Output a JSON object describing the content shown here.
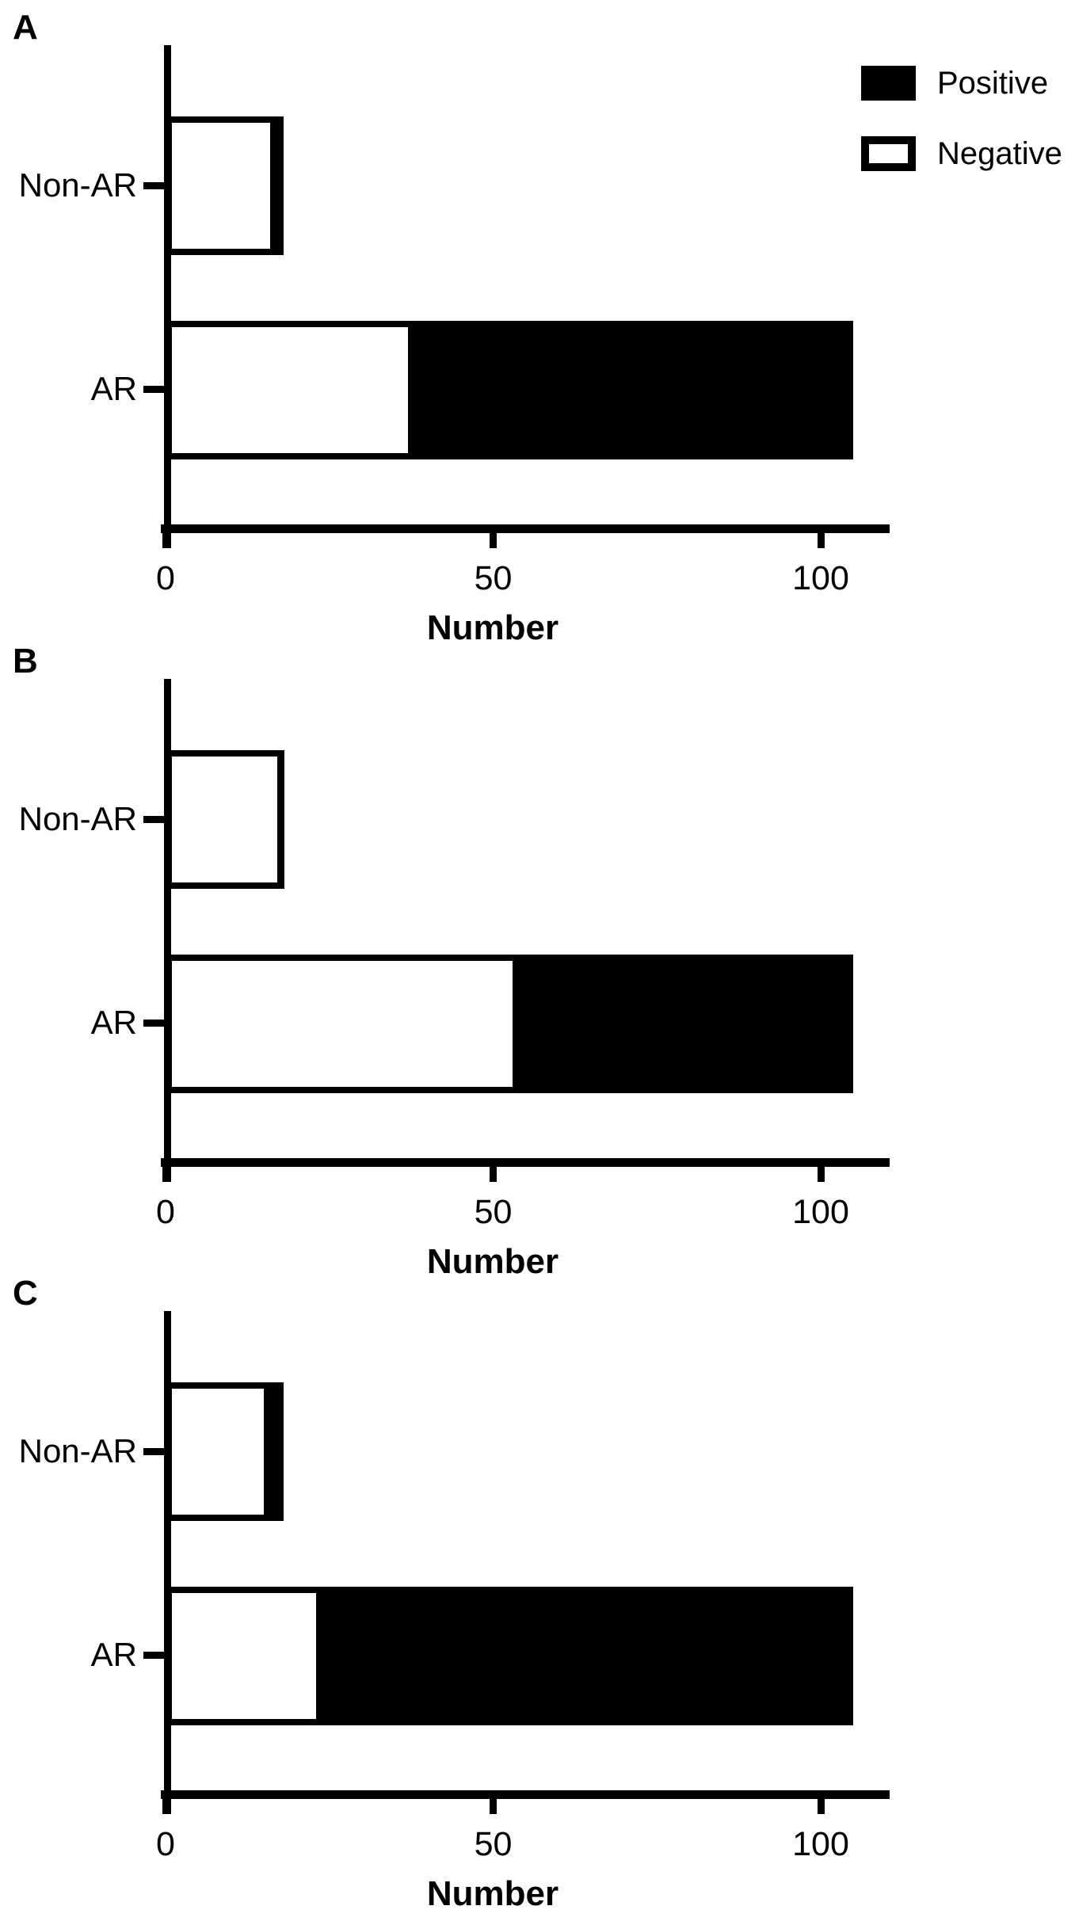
{
  "figure_title": "",
  "colors": {
    "foreground": "#000000",
    "background": "#ffffff",
    "positive_fill": "#000000",
    "negative_fill": "#ffffff"
  },
  "legend": {
    "entries": [
      {
        "label": "Positive",
        "fill": "#000000"
      },
      {
        "label": "Negative",
        "fill": "#ffffff"
      }
    ],
    "position": "top-right-of-panel-A"
  },
  "chart_data": [
    {
      "type": "bar",
      "orientation": "horizontal",
      "stacked": true,
      "panel": "A",
      "categories": [
        "Non-AR",
        "AR"
      ],
      "series": [
        {
          "name": "Negative",
          "values": [
            15,
            36
          ]
        },
        {
          "name": "Positive",
          "values": [
            3,
            69
          ]
        }
      ],
      "totals": [
        18,
        105
      ],
      "xlabel": "Number",
      "xticks": [
        0,
        50,
        100
      ],
      "xlim": [
        0,
        110.5
      ],
      "grid": false,
      "has_legend": true
    },
    {
      "type": "bar",
      "orientation": "horizontal",
      "stacked": true,
      "panel": "B",
      "categories": [
        "Non-AR",
        "AR"
      ],
      "series": [
        {
          "name": "Negative",
          "values": [
            17,
            52
          ]
        },
        {
          "name": "Positive",
          "values": [
            1,
            53
          ]
        }
      ],
      "totals": [
        18,
        105
      ],
      "xlabel": "Number",
      "xticks": [
        0,
        50,
        100
      ],
      "xlim": [
        0,
        110.5
      ],
      "grid": false,
      "has_legend": false
    },
    {
      "type": "bar",
      "orientation": "horizontal",
      "stacked": true,
      "panel": "C",
      "categories": [
        "Non-AR",
        "AR"
      ],
      "series": [
        {
          "name": "Negative",
          "values": [
            14,
            22
          ]
        },
        {
          "name": "Positive",
          "values": [
            4,
            83
          ]
        }
      ],
      "totals": [
        18,
        105
      ],
      "xlabel": "Number",
      "xticks": [
        0,
        50,
        100
      ],
      "xlim": [
        0,
        110.5
      ],
      "grid": false,
      "has_legend": false
    }
  ]
}
